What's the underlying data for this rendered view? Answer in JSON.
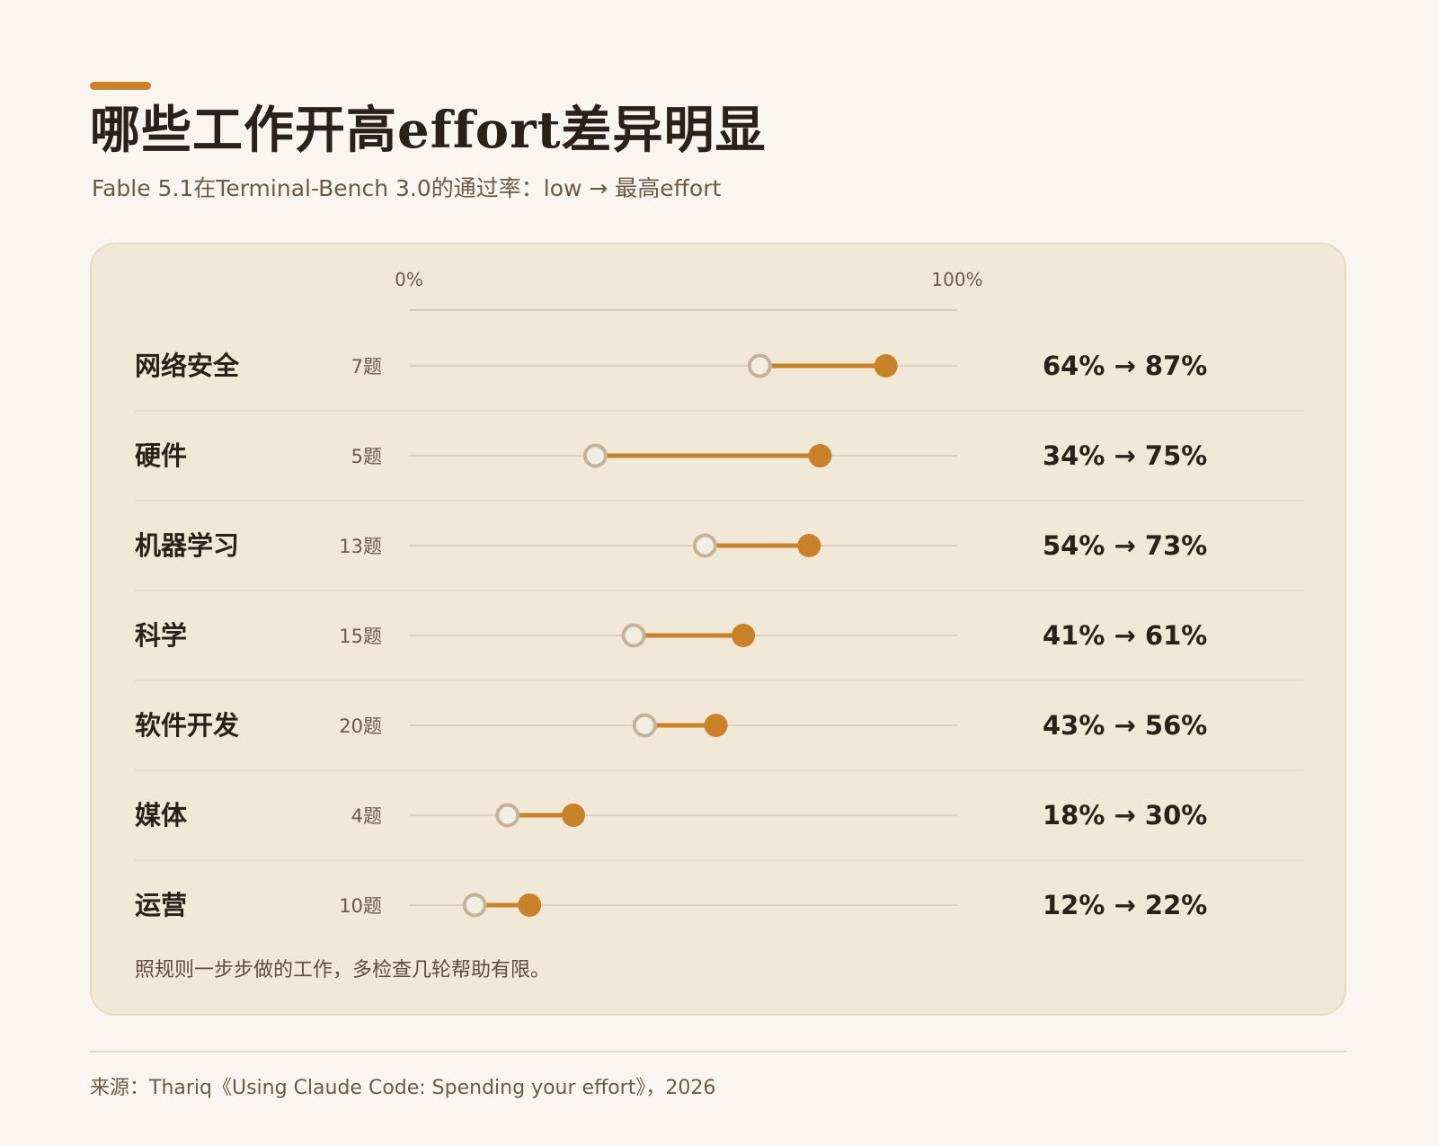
{
  "header": {
    "title": "哪些工作开高effort差异明显",
    "subtitle": "Fable 5.1在Terminal-Bench 3.0的通过率：low → 最高effort"
  },
  "note": "照规则一步步做的工作，多检查几轮帮助有限。",
  "source": "来源：Thariq《Using Claude Code: Spending your effort》，2026",
  "colors": {
    "background": "#faf6ef",
    "panel": "#f2e8d8",
    "accent": "#c9822a",
    "low_marker_stroke": "#c4b39b",
    "track": "#ddd0bd",
    "text_dark": "#2b2118",
    "text_muted": "#6b5a48"
  },
  "chart_data": {
    "type": "dumbbell",
    "axis": {
      "min_label": "0%",
      "max_label": "100%",
      "range": [
        0,
        100
      ],
      "unit": "%"
    },
    "rows": [
      {
        "category": "网络安全",
        "count_label": "7题",
        "low": 64,
        "high": 87,
        "value_label": "64% → 87%"
      },
      {
        "category": "硬件",
        "count_label": "5题",
        "low": 34,
        "high": 75,
        "value_label": "34% → 75%"
      },
      {
        "category": "机器学习",
        "count_label": "13题",
        "low": 54,
        "high": 73,
        "value_label": "54% → 73%"
      },
      {
        "category": "科学",
        "count_label": "15题",
        "low": 41,
        "high": 61,
        "value_label": "41% → 61%"
      },
      {
        "category": "软件开发",
        "count_label": "20题",
        "low": 43,
        "high": 56,
        "value_label": "43% → 56%"
      },
      {
        "category": "媒体",
        "count_label": "4题",
        "low": 18,
        "high": 30,
        "value_label": "18% → 30%"
      },
      {
        "category": "运营",
        "count_label": "10题",
        "low": 12,
        "high": 22,
        "value_label": "12% → 22%"
      }
    ]
  }
}
